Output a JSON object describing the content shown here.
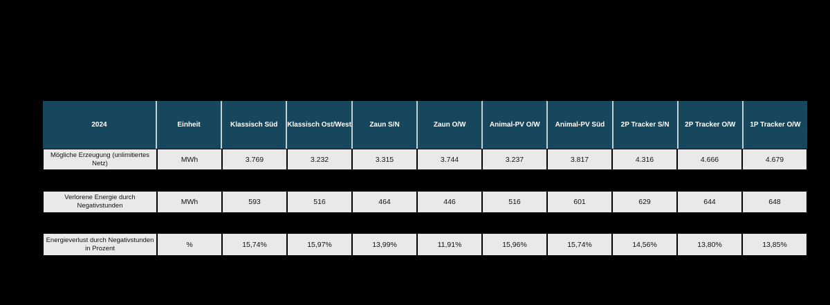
{
  "chart_data": {
    "type": "table",
    "title": "2024",
    "columns": [
      "2024",
      "Einheit",
      "Klassisch Süd",
      "Klassisch Ost/West",
      "Zaun S/N",
      "Zaun O/W",
      "Animal-PV O/W",
      "Animal-PV Süd",
      "2P Tracker S/N",
      "2P Tracker O/W",
      "1P Tracker O/W"
    ],
    "rows": [
      {
        "label": "Mögliche Erzeugung (unlimitiertes Netz)",
        "unit": "MWh",
        "values": [
          "3.769",
          "3.232",
          "3.315",
          "3.744",
          "3.237",
          "3.817",
          "4.316",
          "4.666",
          "4.679"
        ]
      },
      {
        "label": "Verlorene Energie durch Negativstunden",
        "unit": "MWh",
        "values": [
          "593",
          "516",
          "464",
          "446",
          "516",
          "601",
          "629",
          "644",
          "648"
        ]
      },
      {
        "label": "Energieverlust durch Negativstunden in Prozent",
        "unit": "%",
        "values": [
          "15,74%",
          "15,97%",
          "13,99%",
          "11,91%",
          "15,96%",
          "15,74%",
          "14,56%",
          "13,80%",
          "13,85%"
        ]
      }
    ],
    "layout": {
      "legend": "none",
      "grid": "table-borders",
      "row_gaps": true
    },
    "colors": {
      "background": "#000000",
      "header_bg": "#16475C",
      "header_text": "#FFFFFF",
      "header_divider": "#C7D2D8",
      "cell_bg": "#E9E9E9",
      "cell_text": "#111111",
      "cell_border": "#000000"
    }
  }
}
